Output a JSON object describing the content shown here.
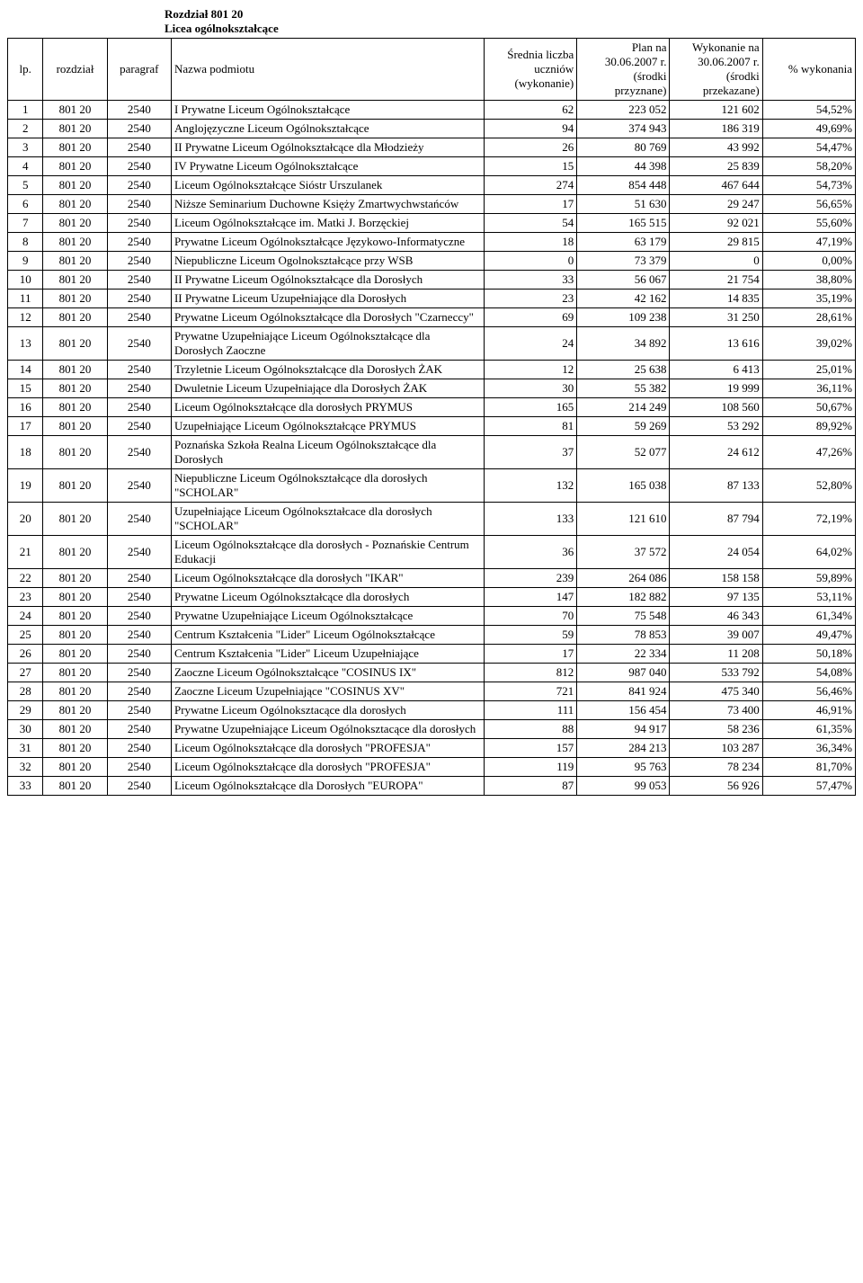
{
  "header": {
    "line1": "Rozdział   801 20",
    "line2": "Licea ogólnokształcące"
  },
  "columns": {
    "lp": "lp.",
    "rozdzial": "rozdział",
    "paragraf": "paragraf",
    "nazwa": "Nazwa podmiotu",
    "srednia": "Średnia liczba uczniów (wykonanie)",
    "plan": "Plan na 30.06.2007 r. (środki przyznane)",
    "wykonanie": "Wykonanie na 30.06.2007 r. (środki przekazane)",
    "pct": "% wykonania"
  },
  "rows": [
    {
      "lp": "1",
      "roz": "801 20",
      "par": "2540",
      "name": "I Prywatne Liceum Ogólnokształcące",
      "sred": "62",
      "plan": "223 052",
      "wyk": "121 602",
      "pct": "54,52%"
    },
    {
      "lp": "2",
      "roz": "801 20",
      "par": "2540",
      "name": "Anglojęzyczne Liceum Ogólnokształcące",
      "sred": "94",
      "plan": "374 943",
      "wyk": "186 319",
      "pct": "49,69%"
    },
    {
      "lp": "3",
      "roz": "801 20",
      "par": "2540",
      "name": "II Prywatne Liceum Ogólnokształcące dla Młodzieży",
      "sred": "26",
      "plan": "80 769",
      "wyk": "43 992",
      "pct": "54,47%"
    },
    {
      "lp": "4",
      "roz": "801 20",
      "par": "2540",
      "name": "IV Prywatne Liceum Ogólnokształcące",
      "sred": "15",
      "plan": "44 398",
      "wyk": "25 839",
      "pct": "58,20%"
    },
    {
      "lp": "5",
      "roz": "801 20",
      "par": "2540",
      "name": "Liceum Ogólnokształcące Sióstr Urszulanek",
      "sred": "274",
      "plan": "854 448",
      "wyk": "467 644",
      "pct": "54,73%"
    },
    {
      "lp": "6",
      "roz": "801 20",
      "par": "2540",
      "name": "Niższe Seminarium Duchowne Księży Zmartwychwstańców",
      "sred": "17",
      "plan": "51 630",
      "wyk": "29 247",
      "pct": "56,65%"
    },
    {
      "lp": "7",
      "roz": "801 20",
      "par": "2540",
      "name": "Liceum Ogólnokształcące im. Matki J. Borzęckiej",
      "sred": "54",
      "plan": "165 515",
      "wyk": "92 021",
      "pct": "55,60%"
    },
    {
      "lp": "8",
      "roz": "801 20",
      "par": "2540",
      "name": "Prywatne Liceum Ogólnokształcące Językowo-Informatyczne",
      "sred": "18",
      "plan": "63 179",
      "wyk": "29 815",
      "pct": "47,19%"
    },
    {
      "lp": "9",
      "roz": "801 20",
      "par": "2540",
      "name": "Niepubliczne Liceum Ogolnokształcące przy WSB",
      "sred": "0",
      "plan": "73 379",
      "wyk": "0",
      "pct": "0,00%"
    },
    {
      "lp": "10",
      "roz": "801 20",
      "par": "2540",
      "name": "II Prywatne Liceum Ogólnokształcące dla Dorosłych",
      "sred": "33",
      "plan": "56 067",
      "wyk": "21 754",
      "pct": "38,80%"
    },
    {
      "lp": "11",
      "roz": "801 20",
      "par": "2540",
      "name": "II Prywatne Liceum Uzupełniające dla Dorosłych",
      "sred": "23",
      "plan": "42 162",
      "wyk": "14 835",
      "pct": "35,19%"
    },
    {
      "lp": "12",
      "roz": "801 20",
      "par": "2540",
      "name": "Prywatne Liceum Ogólnokształcące dla Dorosłych \"Czarneccy\"",
      "sred": "69",
      "plan": "109 238",
      "wyk": "31 250",
      "pct": "28,61%"
    },
    {
      "lp": "13",
      "roz": "801 20",
      "par": "2540",
      "name": "Prywatne Uzupełniające Liceum Ogólnokształcące dla Dorosłych Zaoczne",
      "sred": "24",
      "plan": "34 892",
      "wyk": "13 616",
      "pct": "39,02%"
    },
    {
      "lp": "14",
      "roz": "801 20",
      "par": "2540",
      "name": "Trzyletnie Liceum Ogólnokształcące dla Dorosłych ŻAK",
      "sred": "12",
      "plan": "25 638",
      "wyk": "6 413",
      "pct": "25,01%"
    },
    {
      "lp": "15",
      "roz": "801 20",
      "par": "2540",
      "name": "Dwuletnie Liceum Uzupełniające dla Dorosłych ŻAK",
      "sred": "30",
      "plan": "55 382",
      "wyk": "19 999",
      "pct": "36,11%"
    },
    {
      "lp": "16",
      "roz": "801 20",
      "par": "2540",
      "name": "Liceum Ogólnokształcące dla dorosłych PRYMUS",
      "sred": "165",
      "plan": "214 249",
      "wyk": "108 560",
      "pct": "50,67%"
    },
    {
      "lp": "17",
      "roz": "801 20",
      "par": "2540",
      "name": "Uzupełniające Liceum Ogólnokształcące PRYMUS",
      "sred": "81",
      "plan": "59 269",
      "wyk": "53 292",
      "pct": "89,92%"
    },
    {
      "lp": "18",
      "roz": "801 20",
      "par": "2540",
      "name": "Poznańska Szkoła Realna Liceum Ogólnokształcące dla Dorosłych",
      "sred": "37",
      "plan": "52 077",
      "wyk": "24 612",
      "pct": "47,26%"
    },
    {
      "lp": "19",
      "roz": "801 20",
      "par": "2540",
      "name": "Niepubliczne Liceum Ogólnokształcące dla dorosłych \"SCHOLAR\"",
      "sred": "132",
      "plan": "165 038",
      "wyk": "87 133",
      "pct": "52,80%"
    },
    {
      "lp": "20",
      "roz": "801 20",
      "par": "2540",
      "name": "Uzupełniające Liceum Ogólnokształcace dla dorosłych \"SCHOLAR\"",
      "sred": "133",
      "plan": "121 610",
      "wyk": "87 794",
      "pct": "72,19%"
    },
    {
      "lp": "21",
      "roz": "801 20",
      "par": "2540",
      "name": "Liceum Ogólnokształcące dla dorosłych - Poznańskie Centrum Edukacji",
      "sred": "36",
      "plan": "37 572",
      "wyk": "24 054",
      "pct": "64,02%"
    },
    {
      "lp": "22",
      "roz": "801 20",
      "par": "2540",
      "name": "Liceum Ogólnokształcące dla dorosłych \"IKAR\"",
      "sred": "239",
      "plan": "264 086",
      "wyk": "158 158",
      "pct": "59,89%"
    },
    {
      "lp": "23",
      "roz": "801 20",
      "par": "2540",
      "name": "Prywatne Liceum Ogólnokształcące dla dorosłych",
      "sred": "147",
      "plan": "182 882",
      "wyk": "97 135",
      "pct": "53,11%"
    },
    {
      "lp": "24",
      "roz": "801 20",
      "par": "2540",
      "name": "Prywatne Uzupełniające Liceum Ogólnokształcące",
      "sred": "70",
      "plan": "75 548",
      "wyk": "46 343",
      "pct": "61,34%"
    },
    {
      "lp": "25",
      "roz": "801 20",
      "par": "2540",
      "name": "Centrum Kształcenia \"Lider\" Liceum Ogólnokształcące",
      "sred": "59",
      "plan": "78 853",
      "wyk": "39 007",
      "pct": "49,47%"
    },
    {
      "lp": "26",
      "roz": "801 20",
      "par": "2540",
      "name": "Centrum Kształcenia \"Lider\" Liceum Uzupełniające",
      "sred": "17",
      "plan": "22 334",
      "wyk": "11 208",
      "pct": "50,18%"
    },
    {
      "lp": "27",
      "roz": "801 20",
      "par": "2540",
      "name": "Zaoczne Liceum Ogólnokształcące \"COSINUS IX\"",
      "sred": "812",
      "plan": "987 040",
      "wyk": "533 792",
      "pct": "54,08%"
    },
    {
      "lp": "28",
      "roz": "801 20",
      "par": "2540",
      "name": "Zaoczne Liceum Uzupełniające \"COSINUS XV\"",
      "sred": "721",
      "plan": "841 924",
      "wyk": "475 340",
      "pct": "56,46%"
    },
    {
      "lp": "29",
      "roz": "801 20",
      "par": "2540",
      "name": "Prywatne Liceum Ogólnoksztacące dla dorosłych",
      "sred": "111",
      "plan": "156 454",
      "wyk": "73 400",
      "pct": "46,91%"
    },
    {
      "lp": "30",
      "roz": "801 20",
      "par": "2540",
      "name": "Prywatne Uzupełniające Liceum Ogólnoksztacące dla dorosłych",
      "sred": "88",
      "plan": "94 917",
      "wyk": "58 236",
      "pct": "61,35%"
    },
    {
      "lp": "31",
      "roz": "801 20",
      "par": "2540",
      "name": "Liceum Ogólnokształcące dla dorosłych \"PROFESJA\"",
      "sred": "157",
      "plan": "284 213",
      "wyk": "103 287",
      "pct": "36,34%"
    },
    {
      "lp": "32",
      "roz": "801 20",
      "par": "2540",
      "name": "Liceum Ogólnokształcące dla dorosłych \"PROFESJA\"",
      "sred": "119",
      "plan": "95 763",
      "wyk": "78 234",
      "pct": "81,70%"
    },
    {
      "lp": "33",
      "roz": "801 20",
      "par": "2540",
      "name": "Liceum Ogólnokształcące dla Dorosłych \"EUROPA\"",
      "sred": "87",
      "plan": "99 053",
      "wyk": "56 926",
      "pct": "57,47%"
    }
  ]
}
